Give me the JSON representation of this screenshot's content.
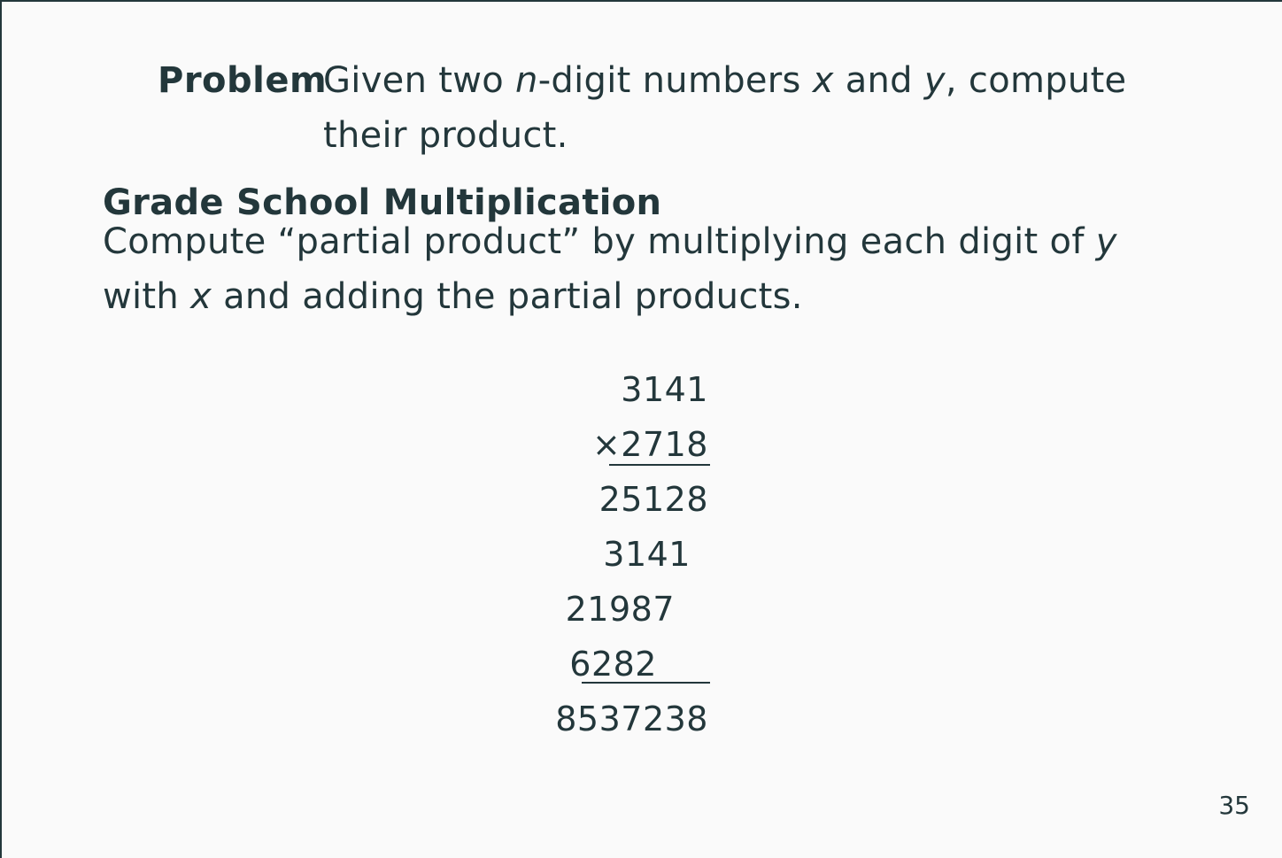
{
  "problem": {
    "label": "Problem",
    "text_part1": "Given two ",
    "var_n": "n",
    "text_part2": "-digit numbers ",
    "var_x": "x",
    "text_part3": " and ",
    "var_y": "y",
    "text_part4": ", compute their product."
  },
  "section": {
    "heading": "Grade School Multiplication",
    "text_part1": "Compute “partial product” by multiplying each digit of ",
    "var_y": "y",
    "text_part2": " with ",
    "var_x": "x",
    "text_part3": " and adding the partial products."
  },
  "multiplication": {
    "multiplicand": "3141",
    "operator": "×",
    "multiplier": "2718",
    "partial_products": [
      "25128",
      "3141",
      "21987",
      "6282"
    ],
    "result": "8537238"
  },
  "page_number": "35"
}
